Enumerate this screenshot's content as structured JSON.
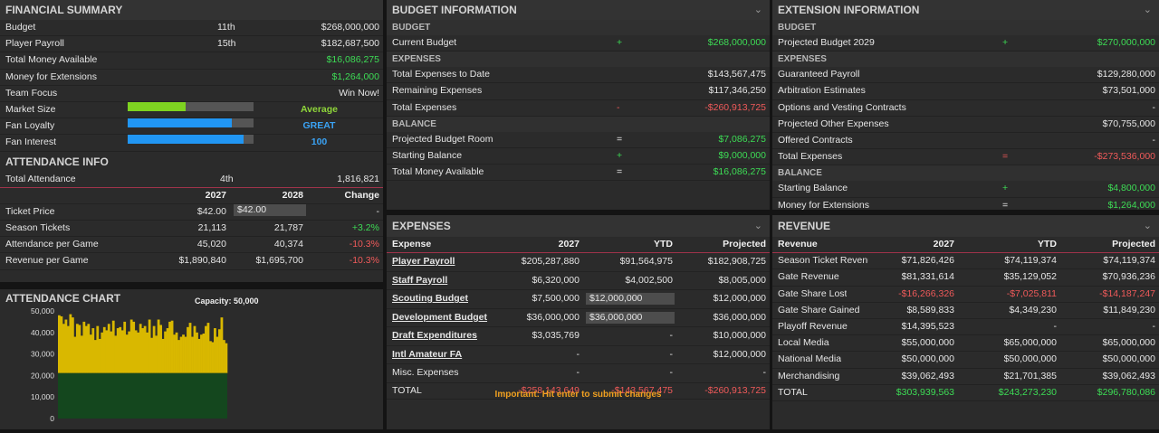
{
  "financial": {
    "title": "FINANCIAL SUMMARY",
    "rows": [
      {
        "label": "Budget",
        "rank": "11th",
        "value": "$268,000,000"
      },
      {
        "label": "Player Payroll",
        "rank": "15th",
        "value": "$182,687,500"
      },
      {
        "label": "Total Money Available",
        "rank": "",
        "value": "$16,086,275"
      },
      {
        "label": "Money for Extensions",
        "rank": "",
        "value": "$1,264,000"
      },
      {
        "label": "Team Focus",
        "rank": "",
        "value": "Win Now!"
      }
    ],
    "bars": [
      {
        "label": "Market Size",
        "level": 0.46,
        "text": "Average",
        "color": "#7ed321"
      },
      {
        "label": "Fan Loyalty",
        "level": 0.83,
        "text": "GREAT",
        "color": "#2196f3"
      },
      {
        "label": "Fan Interest",
        "level": 0.92,
        "text": "100",
        "color": "#2196f3"
      }
    ]
  },
  "attendance": {
    "title": "ATTENDANCE INFO",
    "total": {
      "label": "Total Attendance",
      "rank": "4th",
      "value": "1,816,821"
    },
    "headers": [
      "2027",
      "2028",
      "Change"
    ],
    "rows": [
      {
        "label": "Ticket Price",
        "y1": "$42.00",
        "y2": "$42.00",
        "change": "-"
      },
      {
        "label": "Season Tickets",
        "y1": "21,113",
        "y2": "21,787",
        "change": "+3.2%"
      },
      {
        "label": "Attendance per Game",
        "y1": "45,020",
        "y2": "40,374",
        "change": "-10.3%"
      },
      {
        "label": "Revenue per Game",
        "y1": "$1,890,840",
        "y2": "$1,695,700",
        "change": "-10.3%"
      }
    ]
  },
  "chart": {
    "title": "ATTENDANCE CHART",
    "capacity_label": "Capacity: 50,000",
    "chart_data": {
      "type": "bar",
      "yticks": [
        "50,000",
        "40,000",
        "30,000",
        "20,000",
        "10,000",
        "0"
      ],
      "ylim": [
        0,
        50000
      ],
      "base_value": 21113,
      "base_color": "#14471e",
      "bar_color": "#d9b800",
      "values": [
        48000,
        47500,
        44000,
        46000,
        43000,
        48500,
        47000,
        38000,
        44000,
        43500,
        38500,
        45000,
        43000,
        44000,
        39000,
        42000,
        36500,
        43000,
        37000,
        40000,
        42500,
        41000,
        44000,
        40500,
        45500,
        38500,
        42000,
        42500,
        41000,
        45000,
        39000,
        40500,
        46000,
        45000,
        41000,
        40000,
        44000,
        42000,
        43000,
        40000,
        46000,
        37500,
        43000,
        38500,
        46000,
        43500,
        37000,
        40500,
        42000,
        45000,
        45500,
        39000,
        40000,
        36500,
        38000,
        39000,
        38000,
        42500,
        44500,
        38000,
        43000,
        40000,
        37000,
        39000,
        39500,
        43000,
        44500,
        36000,
        35500,
        42000,
        38000,
        41500,
        47000,
        36500,
        35000
      ]
    }
  },
  "budget": {
    "title": "BUDGET INFORMATION",
    "sections": [
      {
        "name": "BUDGET",
        "rows": [
          {
            "label": "Current Budget",
            "sign": "+",
            "value": "$268,000,000",
            "tone": "green"
          }
        ]
      },
      {
        "name": "EXPENSES",
        "rows": [
          {
            "label": "Total Expenses to Date",
            "sign": "",
            "value": "$143,567,475",
            "tone": ""
          },
          {
            "label": "Remaining Expenses",
            "sign": "",
            "value": "$117,346,250",
            "tone": ""
          },
          {
            "label": "Total Expenses",
            "sign": "-",
            "value": "-$260,913,725",
            "tone": "red"
          }
        ]
      },
      {
        "name": "BALANCE",
        "rows": [
          {
            "label": "Projected Budget Room",
            "sign": "=",
            "value": "$7,086,275",
            "tone": "green"
          },
          {
            "label": "Starting Balance",
            "sign": "+",
            "value": "$9,000,000",
            "tone": "green"
          },
          {
            "label": "Total Money Available",
            "sign": "=",
            "value": "$16,086,275",
            "tone": "green"
          }
        ]
      }
    ]
  },
  "extension": {
    "title": "EXTENSION INFORMATION",
    "sections": [
      {
        "name": "BUDGET",
        "rows": [
          {
            "label": "Projected Budget 2029",
            "sign": "+",
            "value": "$270,000,000",
            "tone": "green"
          }
        ]
      },
      {
        "name": "EXPENSES",
        "rows": [
          {
            "label": "Guaranteed Payroll",
            "sign": "",
            "value": "$129,280,000",
            "tone": ""
          },
          {
            "label": "Arbitration Estimates",
            "sign": "",
            "value": "$73,501,000",
            "tone": ""
          },
          {
            "label": "Options and Vesting Contracts",
            "sign": "",
            "value": "-",
            "tone": ""
          },
          {
            "label": "Projected Other Expenses",
            "sign": "",
            "value": "$70,755,000",
            "tone": ""
          },
          {
            "label": "Offered Contracts",
            "sign": "",
            "value": "-",
            "tone": ""
          },
          {
            "label": "Total Expenses",
            "sign": "=",
            "value": "-$273,536,000",
            "tone": "red"
          }
        ]
      },
      {
        "name": "BALANCE",
        "rows": [
          {
            "label": "Starting Balance",
            "sign": "+",
            "value": "$4,800,000",
            "tone": "green"
          },
          {
            "label": "Money for Extensions",
            "sign": "=",
            "value": "$1,264,000",
            "tone": "green"
          }
        ]
      }
    ]
  },
  "expenses": {
    "title": "EXPENSES",
    "headers": [
      "Expense",
      "2027",
      "YTD",
      "Projected"
    ],
    "rows": [
      {
        "label": "Player Payroll",
        "link": true,
        "y2027": "$205,287,880",
        "ytd": "$91,564,975",
        "ytd_input": false,
        "proj": "$182,908,725"
      },
      {
        "label": "Staff Payroll",
        "link": true,
        "y2027": "$6,320,000",
        "ytd": "$4,002,500",
        "ytd_input": false,
        "proj": "$8,005,000"
      },
      {
        "label": "Scouting Budget",
        "link": true,
        "y2027": "$7,500,000",
        "ytd": "$12,000,000",
        "ytd_input": true,
        "proj": "$12,000,000"
      },
      {
        "label": "Development Budget",
        "link": true,
        "y2027": "$36,000,000",
        "ytd": "$36,000,000",
        "ytd_input": true,
        "proj": "$36,000,000"
      },
      {
        "label": "Draft Expenditures",
        "link": true,
        "y2027": "$3,035,769",
        "ytd": "-",
        "ytd_input": false,
        "proj": "$10,000,000"
      },
      {
        "label": "Intl Amateur FA",
        "link": true,
        "y2027": "-",
        "ytd": "-",
        "ytd_input": false,
        "proj": "$12,000,000"
      },
      {
        "label": "Misc. Expenses",
        "link": false,
        "y2027": "-",
        "ytd": "-",
        "ytd_input": false,
        "proj": "-"
      }
    ],
    "total": {
      "label": "TOTAL",
      "y2027": "-$258,143,649",
      "ytd": "-$143,567,475",
      "proj": "-$260,913,725"
    },
    "note": "Important: Hit enter to submit changes"
  },
  "revenue": {
    "title": "REVENUE",
    "headers": [
      "Revenue",
      "2027",
      "YTD",
      "Projected"
    ],
    "rows": [
      {
        "label": "Season Ticket Revenue",
        "y2027": "$71,826,426",
        "ytd": "$74,119,374",
        "proj": "$74,119,374",
        "tone": ""
      },
      {
        "label": "Gate Revenue",
        "y2027": "$81,331,614",
        "ytd": "$35,129,052",
        "proj": "$70,936,236",
        "tone": ""
      },
      {
        "label": "Gate Share Lost",
        "y2027": "-$16,266,326",
        "ytd": "-$7,025,811",
        "proj": "-$14,187,247",
        "tone": "red"
      },
      {
        "label": "Gate Share Gained",
        "y2027": "$8,589,833",
        "ytd": "$4,349,230",
        "proj": "$11,849,230",
        "tone": ""
      },
      {
        "label": "Playoff Revenue",
        "y2027": "$14,395,523",
        "ytd": "-",
        "proj": "-",
        "tone": ""
      },
      {
        "label": "Local Media",
        "y2027": "$55,000,000",
        "ytd": "$65,000,000",
        "proj": "$65,000,000",
        "tone": ""
      },
      {
        "label": "National Media",
        "y2027": "$50,000,000",
        "ytd": "$50,000,000",
        "proj": "$50,000,000",
        "tone": ""
      },
      {
        "label": "Merchandising",
        "y2027": "$39,062,493",
        "ytd": "$21,701,385",
        "proj": "$39,062,493",
        "tone": ""
      }
    ],
    "total": {
      "label": "TOTAL",
      "y2027": "$303,939,563",
      "ytd": "$243,273,230",
      "proj": "$296,780,086"
    }
  },
  "icons": {
    "collapse": "chevron-down-icon"
  }
}
